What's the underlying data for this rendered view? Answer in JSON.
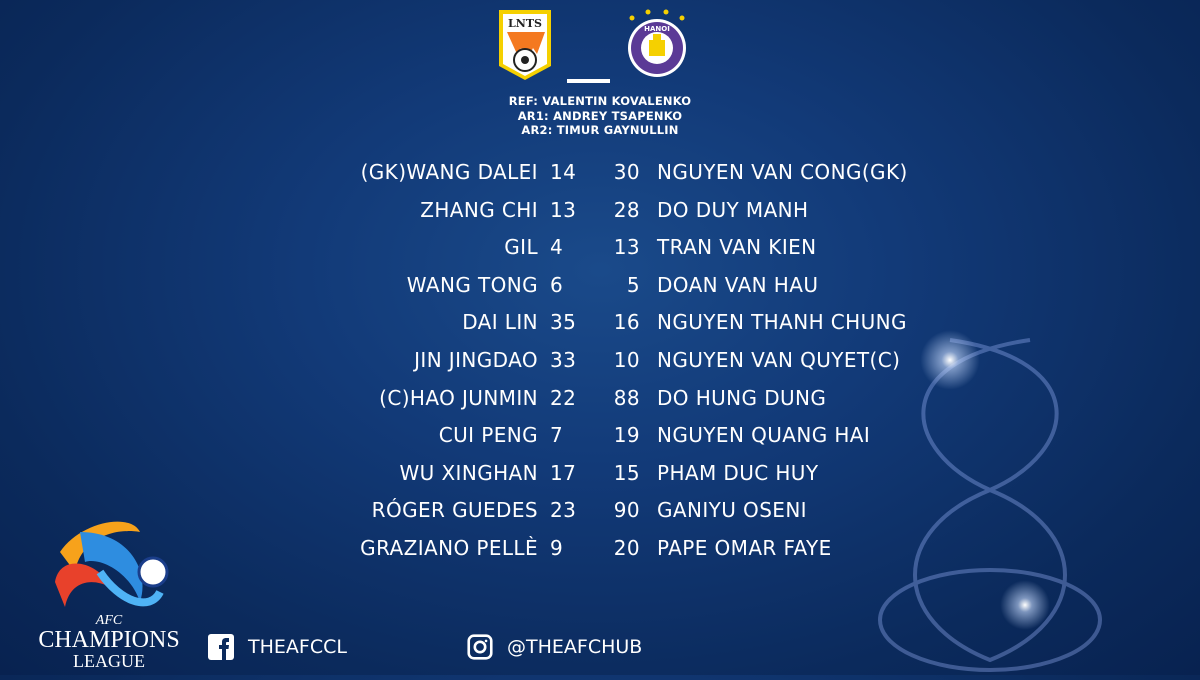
{
  "home_team": {
    "logo_text": "LNTS",
    "players": [
      {
        "name": "(GK)WANG DALEI",
        "number": "14"
      },
      {
        "name": "ZHANG CHI",
        "number": "13"
      },
      {
        "name": "GIL",
        "number": "4"
      },
      {
        "name": "WANG TONG",
        "number": "6"
      },
      {
        "name": "DAI LIN",
        "number": "35"
      },
      {
        "name": "JIN JINGDAO",
        "number": "33"
      },
      {
        "name": "(C)HAO JUNMIN",
        "number": "22"
      },
      {
        "name": "CUI PENG",
        "number": "7"
      },
      {
        "name": "WU XINGHAN",
        "number": "17"
      },
      {
        "name": "RÓGER GUEDES",
        "number": "23"
      },
      {
        "name": "GRAZIANO PELLÈ",
        "number": "9"
      }
    ]
  },
  "away_team": {
    "logo_text": "HANOI FOOTBALL CLUB",
    "players": [
      {
        "name": "NGUYEN VAN CONG(GK)",
        "number": "30"
      },
      {
        "name": "DO DUY MANH",
        "number": "28"
      },
      {
        "name": "TRAN VAN KIEN",
        "number": "13"
      },
      {
        "name": "DOAN VAN HAU",
        "number": "5"
      },
      {
        "name": "NGUYEN THANH CHUNG",
        "number": "16"
      },
      {
        "name": "NGUYEN VAN QUYET(C)",
        "number": "10"
      },
      {
        "name": "DO HUNG DUNG",
        "number": "88"
      },
      {
        "name": "NGUYEN QUANG HAI",
        "number": "19"
      },
      {
        "name": "PHAM DUC HUY",
        "number": "15"
      },
      {
        "name": "GANIYU OSENI",
        "number": "90"
      },
      {
        "name": "PAPE OMAR FAYE",
        "number": "20"
      }
    ]
  },
  "officials": {
    "ref": "REF: VALENTIN KOVALENKO",
    "ar1": "AR1: ANDREY TSAPENKO",
    "ar2": "AR2: TIMUR GAYNULLIN"
  },
  "brand": {
    "afc": "AFC",
    "champions": "CHAMPIONS",
    "league": "LEAGUE"
  },
  "social": {
    "facebook": "THEAFCCL",
    "instagram": "@THEAFCHUB"
  },
  "colors": {
    "background": "#0b2a5c",
    "home_orange": "#f47920",
    "home_yellow": "#f5d000",
    "away_purple": "#5b3a96"
  }
}
